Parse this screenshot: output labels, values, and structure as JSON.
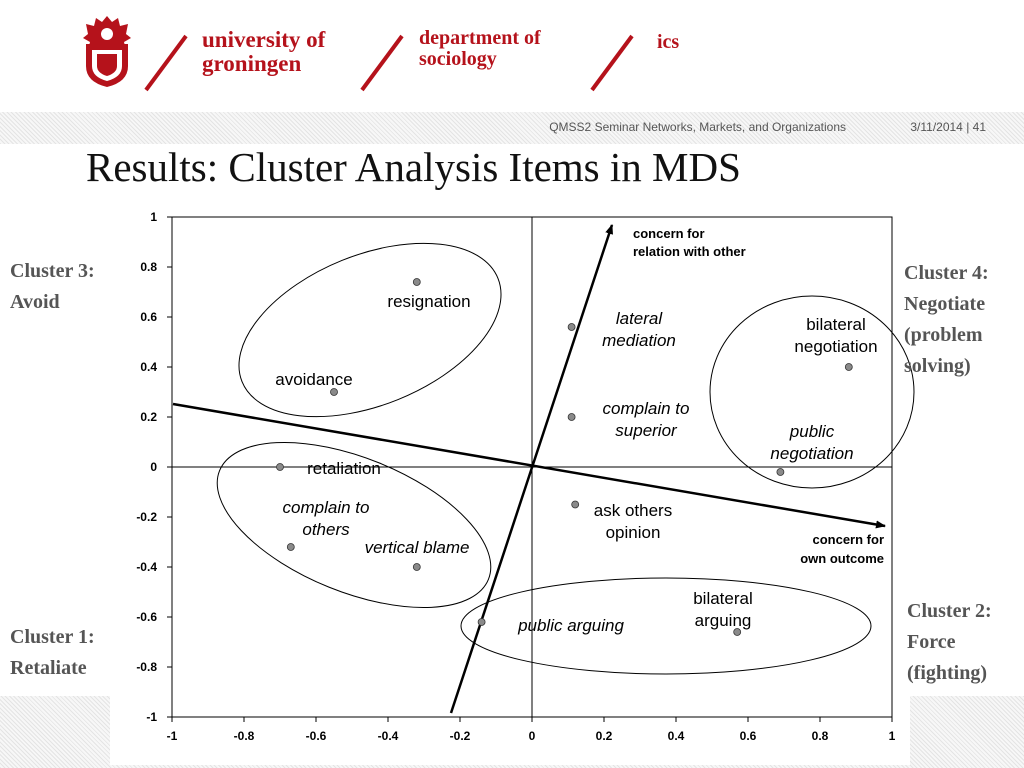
{
  "header": {
    "university": [
      "university of",
      "groningen"
    ],
    "department": [
      "department of",
      "sociology"
    ],
    "institute": "ics"
  },
  "meta": {
    "course": "QMSS2 Seminar Networks, Markets, and Organizations",
    "date_page": "3/11/2014 | 41"
  },
  "title": "Results: Cluster Analysis Items in MDS",
  "colors": {
    "brand": "#b5121b",
    "point": "#8a8a8a",
    "text": "#111111"
  },
  "clusters": [
    {
      "lines": [
        "Cluster 3:",
        "Avoid"
      ]
    },
    {
      "lines": [
        "Cluster 1:",
        "Retaliate"
      ]
    },
    {
      "lines": [
        "Cluster 4:",
        "Negotiate",
        "(problem",
        "solving)"
      ]
    },
    {
      "lines": [
        "Cluster 2:",
        "Force",
        "(fighting)"
      ]
    }
  ],
  "chart_data": {
    "type": "scatter",
    "xlim": [
      -1,
      1
    ],
    "ylim": [
      -1,
      1
    ],
    "xticks": [
      "-1",
      "-0.8",
      "-0.6",
      "-0.4",
      "-0.2",
      "0",
      "0.2",
      "0.4",
      "0.6",
      "0.8",
      "1"
    ],
    "yticks": [
      "1",
      "0.8",
      "0.6",
      "0.4",
      "0.2",
      "0",
      "-0.2",
      "-0.4",
      "-0.6",
      "-0.8",
      "-1"
    ],
    "grid": false,
    "points": [
      {
        "label": [
          "resignation"
        ],
        "x": -0.32,
        "y": 0.74,
        "italic": false
      },
      {
        "label": [
          "avoidance"
        ],
        "x": -0.55,
        "y": 0.3,
        "italic": false
      },
      {
        "label": [
          "retaliation"
        ],
        "x": -0.7,
        "y": 0.0,
        "italic": false
      },
      {
        "label": [
          "complain to",
          "others"
        ],
        "x": -0.67,
        "y": -0.32,
        "italic": true
      },
      {
        "label": [
          "vertical blame"
        ],
        "x": -0.32,
        "y": -0.4,
        "italic": true
      },
      {
        "label": [
          "lateral",
          "mediation"
        ],
        "x": 0.11,
        "y": 0.56,
        "italic": true
      },
      {
        "label": [
          "complain to",
          "superior"
        ],
        "x": 0.11,
        "y": 0.2,
        "italic": true
      },
      {
        "label": [
          "ask others",
          "opinion"
        ],
        "x": 0.12,
        "y": -0.15,
        "italic": false
      },
      {
        "label": [
          "bilateral",
          "negotiation"
        ],
        "x": 0.88,
        "y": 0.4,
        "italic": false
      },
      {
        "label": [
          "public",
          "negotiation"
        ],
        "x": 0.69,
        "y": -0.02,
        "italic": true
      },
      {
        "label": [
          "public arguing"
        ],
        "x": -0.14,
        "y": -0.62,
        "italic": true
      },
      {
        "label": [
          "bilateral",
          "arguing"
        ],
        "x": 0.57,
        "y": -0.66,
        "italic": false
      }
    ],
    "axes_arrows": [
      {
        "label": [
          "concern for",
          "relation with other"
        ]
      },
      {
        "label": [
          "concern for",
          "own outcome"
        ]
      }
    ]
  }
}
